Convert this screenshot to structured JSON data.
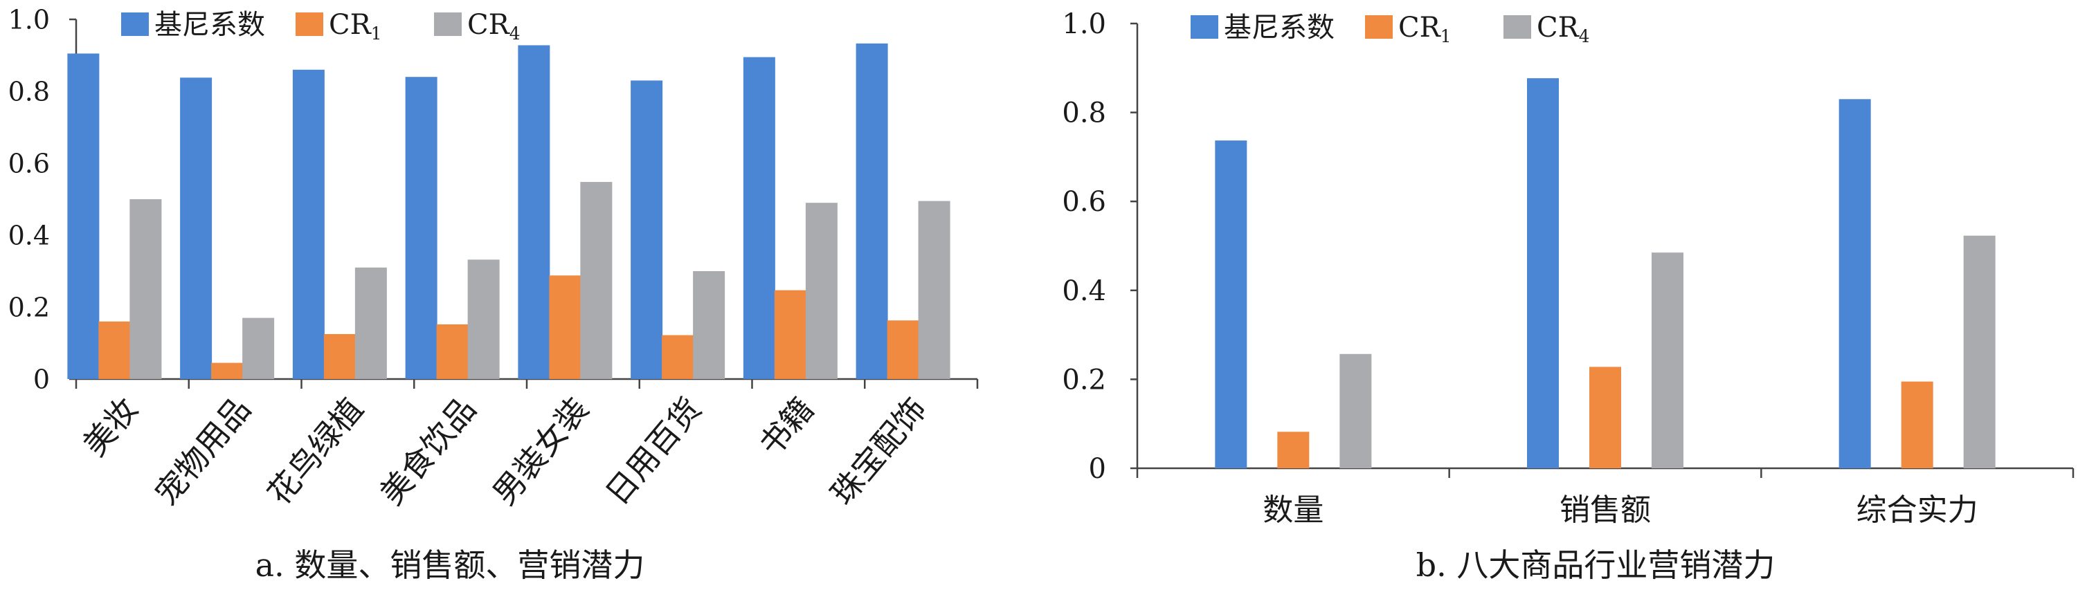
{
  "chart_data": [
    {
      "id": "a",
      "type": "bar",
      "title": "",
      "caption": "a. 数量、销售额、营销潜力",
      "categories": [
        "美妆",
        "宠物用品",
        "花鸟绿植",
        "美食饮品",
        "男装女装",
        "日用百货",
        "书籍",
        "珠宝配饰"
      ],
      "series": [
        {
          "name": "基尼系数",
          "name_sub": "",
          "color": "#4a86d4",
          "values": [
            0.905,
            0.838,
            0.86,
            0.84,
            0.928,
            0.83,
            0.895,
            0.933
          ]
        },
        {
          "name": "CR",
          "name_sub": "1",
          "color": "#f08a40",
          "values": [
            0.16,
            0.045,
            0.125,
            0.152,
            0.288,
            0.122,
            0.247,
            0.163
          ]
        },
        {
          "name": "CR",
          "name_sub": "4",
          "color": "#a9abaf",
          "values": [
            0.5,
            0.17,
            0.31,
            0.332,
            0.548,
            0.3,
            0.49,
            0.495
          ]
        }
      ],
      "ylim": [
        0,
        1.0
      ],
      "yticks": [
        "0",
        "0.2",
        "0.4",
        "0.6",
        "0.8",
        "1.0"
      ],
      "xlabel": "",
      "ylabel": "",
      "legend": "top-left",
      "grid": false,
      "x_labels_rotated": true
    },
    {
      "id": "b",
      "type": "bar",
      "title": "",
      "caption": "b. 八大商品行业营销潜力",
      "categories": [
        "数量",
        "销售额",
        "综合实力"
      ],
      "series": [
        {
          "name": "基尼系数",
          "name_sub": "",
          "color": "#4a86d4",
          "values": [
            0.737,
            0.877,
            0.83
          ]
        },
        {
          "name": "CR",
          "name_sub": "1",
          "color": "#f08a40",
          "values": [
            0.082,
            0.228,
            0.195
          ]
        },
        {
          "name": "CR",
          "name_sub": "4",
          "color": "#a9abaf",
          "values": [
            0.257,
            0.485,
            0.523
          ]
        }
      ],
      "ylim": [
        0,
        1.0
      ],
      "yticks": [
        "0",
        "0.2",
        "0.4",
        "0.6",
        "0.8",
        "1.0"
      ],
      "xlabel": "",
      "ylabel": "",
      "legend": "top-left",
      "grid": false,
      "x_labels_rotated": false
    }
  ]
}
